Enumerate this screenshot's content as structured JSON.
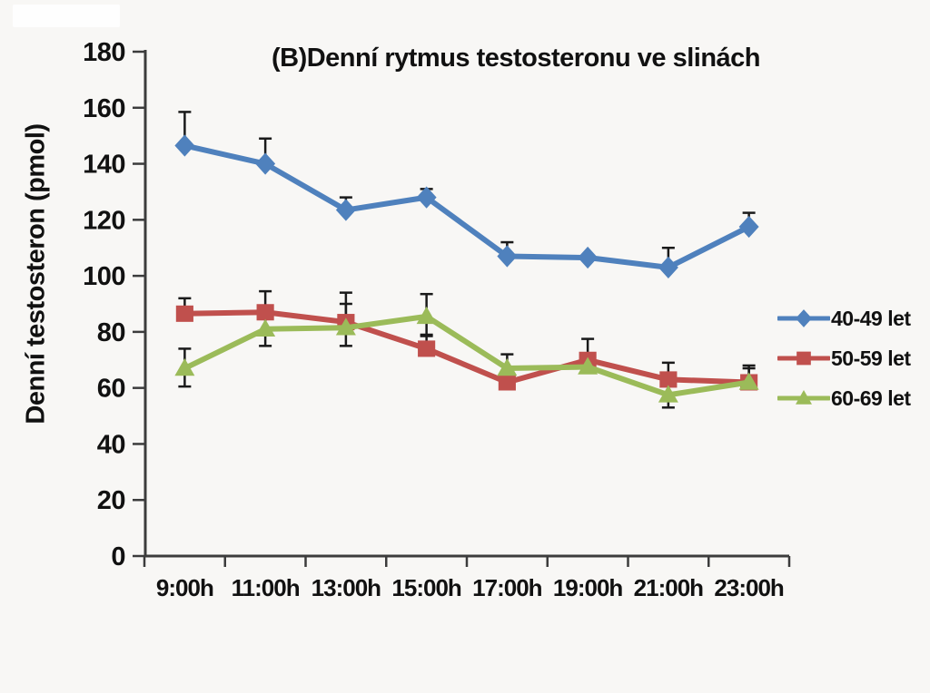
{
  "chart_data": {
    "type": "line",
    "title": "(B)Denní rytmus testosteronu ve slinách",
    "ylabel": "Denní testosteron (pmol)",
    "xlabel": "",
    "categories": [
      "9:00h",
      "11:00h",
      "13:00h",
      "15:00h",
      "17:00h",
      "19:00h",
      "21:00h",
      "23:00h"
    ],
    "y_ticks": [
      0,
      20,
      40,
      60,
      80,
      100,
      120,
      140,
      160,
      180
    ],
    "ylim": [
      0,
      180
    ],
    "grid": "off",
    "legend_position": "right",
    "axis_color": "#3c3c3c",
    "error_bar_color": "#1a1a1a",
    "background_color": "#f8f7f5",
    "series": [
      {
        "name": "40-49 let",
        "color": "#4F81BD",
        "marker": "diamond",
        "values": [
          146.5,
          140,
          123.5,
          128,
          107,
          106.5,
          103,
          117.5
        ],
        "err_up": [
          12,
          9,
          4.5,
          3,
          5,
          null,
          7,
          5
        ],
        "err_down": [
          null,
          null,
          null,
          null,
          null,
          null,
          null,
          null
        ]
      },
      {
        "name": "50-59 let",
        "color": "#C0504D",
        "marker": "square",
        "values": [
          86.5,
          87,
          83.5,
          74,
          62,
          70,
          63,
          62
        ],
        "err_up": [
          5.5,
          7.5,
          10.5,
          5,
          3,
          7.5,
          6,
          5
        ],
        "err_down": [
          null,
          null,
          null,
          null,
          null,
          null,
          null,
          null
        ]
      },
      {
        "name": "60-69 let",
        "color": "#9BBB59",
        "marker": "triangle",
        "values": [
          67,
          81,
          81.5,
          85.5,
          67,
          67.5,
          57.5,
          62
        ],
        "err_up": [
          7,
          6,
          8.5,
          8,
          5,
          null,
          null,
          6
        ],
        "err_down": [
          6.5,
          6,
          6.5,
          7,
          null,
          null,
          4.5,
          null
        ]
      }
    ]
  }
}
